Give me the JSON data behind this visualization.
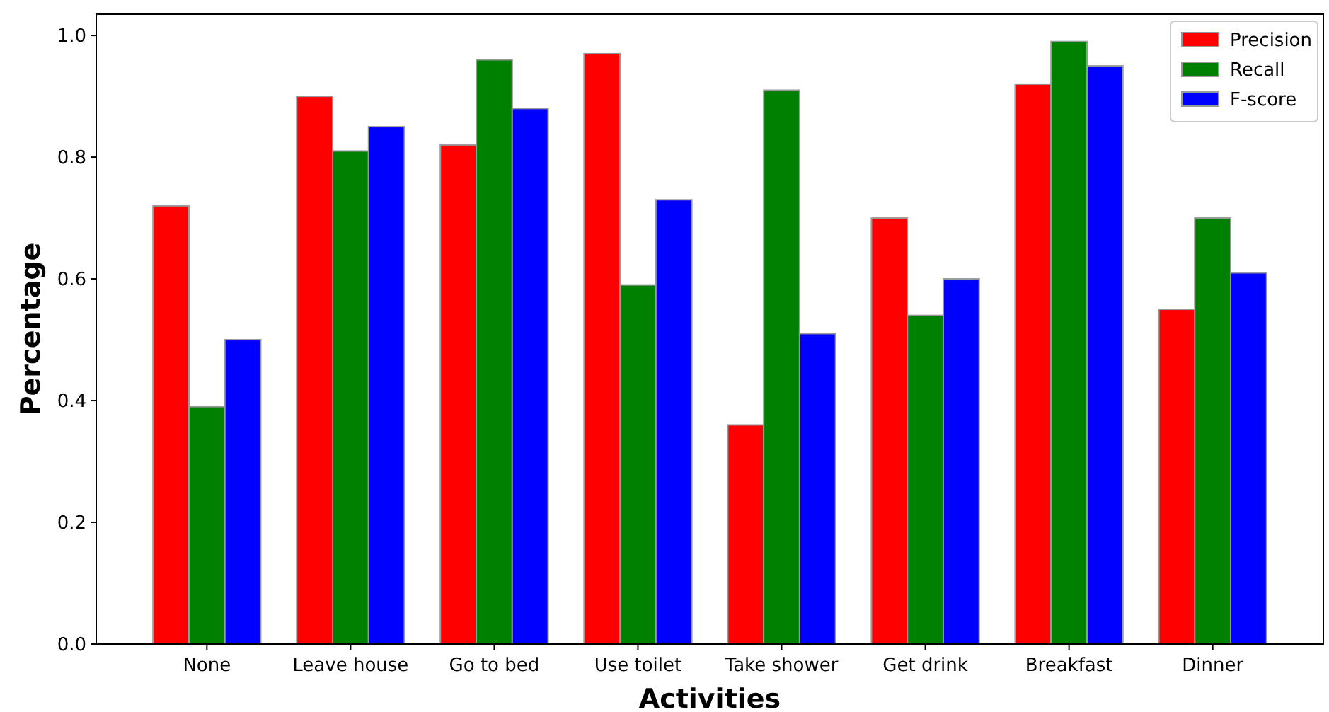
{
  "chart_data": {
    "type": "bar",
    "xlabel": "Activities",
    "ylabel": "Percentage",
    "categories": [
      "None",
      "Leave house",
      "Go to bed",
      "Use toilet",
      "Take shower",
      "Get drink",
      "Breakfast",
      "Dinner"
    ],
    "series": [
      {
        "name": "Precision",
        "color": "#ff0000",
        "values": [
          0.72,
          0.9,
          0.82,
          0.97,
          0.36,
          0.7,
          0.92,
          0.55
        ]
      },
      {
        "name": "Recall",
        "color": "#008000",
        "values": [
          0.39,
          0.81,
          0.96,
          0.59,
          0.91,
          0.54,
          0.99,
          0.7
        ]
      },
      {
        "name": "F-score",
        "color": "#0000ff",
        "values": [
          0.5,
          0.85,
          0.88,
          0.73,
          0.51,
          0.6,
          0.95,
          0.61
        ]
      }
    ],
    "ylim": [
      0,
      1.035
    ],
    "yticks": [
      {
        "value": 0,
        "label": "0.0"
      },
      {
        "value": 0.2,
        "label": "0.2"
      },
      {
        "value": 0.4,
        "label": "0.4"
      },
      {
        "value": 0.6,
        "label": "0.6"
      },
      {
        "value": 0.8,
        "label": "0.8"
      },
      {
        "value": 1,
        "label": "1.0"
      }
    ],
    "legend": "top right",
    "grid": false
  }
}
